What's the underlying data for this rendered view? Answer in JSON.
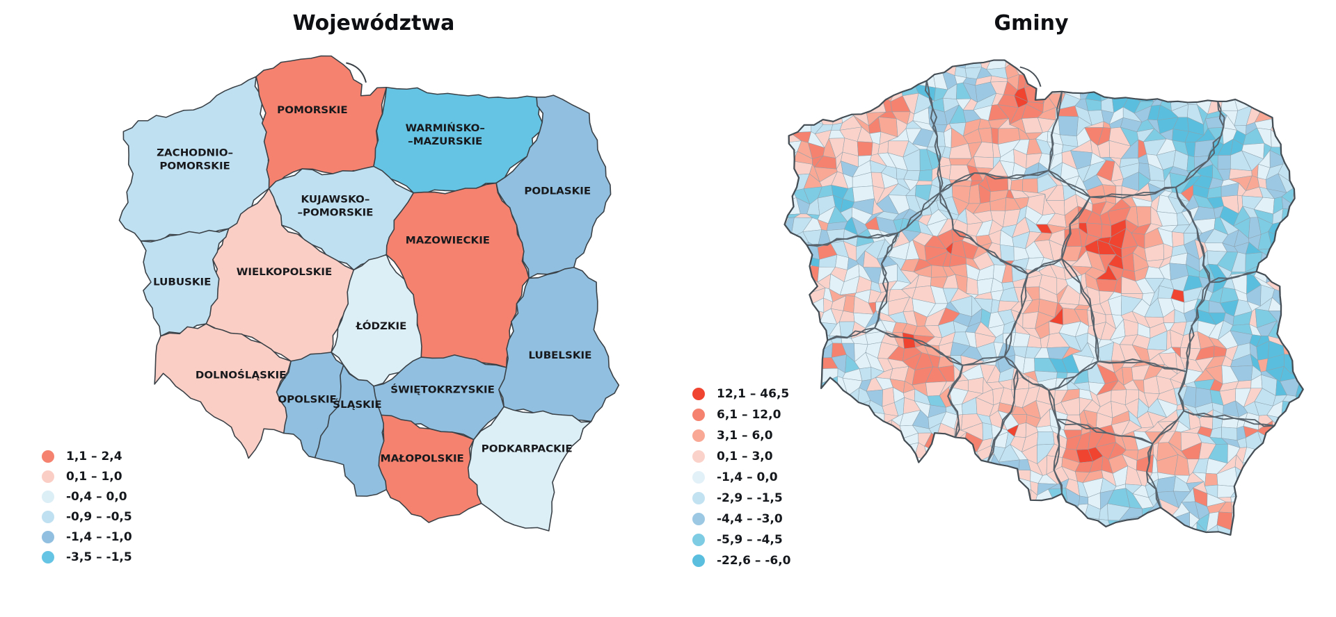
{
  "left_panel": {
    "title": "Województwa",
    "legend": [
      {
        "label": "1,1 – 2,4",
        "color": "#F5826F"
      },
      {
        "label": "0,1 – 1,0",
        "color": "#FBCEC5"
      },
      {
        "label": "-0,4 – 0,0",
        "color": "#DCEEF6"
      },
      {
        "label": "-0,9 – -0,5",
        "color": "#BFE0F1"
      },
      {
        "label": "-1,4 – -1,0",
        "color": "#90BFDF"
      },
      {
        "label": "-3,5 – -1,5",
        "color": "#65C4E3"
      }
    ],
    "regions": [
      {
        "id": "zachodniopomorskie",
        "label": [
          "ZACHODNIO–",
          "POMORSKIE"
        ],
        "class": 3
      },
      {
        "id": "pomorskie",
        "label": [
          "POMORSKIE"
        ],
        "class": 0
      },
      {
        "id": "warminsko",
        "label": [
          "WARMIŃSKO–",
          "–MAZURSKIE"
        ],
        "class": 5
      },
      {
        "id": "podlaskie",
        "label": [
          "PODLASKIE"
        ],
        "class": 4
      },
      {
        "id": "kujawsko",
        "label": [
          "KUJAWSKO–",
          "–POMORSKIE"
        ],
        "class": 3
      },
      {
        "id": "mazowieckie",
        "label": [
          "MAZOWIECKIE"
        ],
        "class": 0
      },
      {
        "id": "wielkopolskie",
        "label": [
          "WIELKOPOLSKIE"
        ],
        "class": 1
      },
      {
        "id": "lubuskie",
        "label": [
          "LUBUSKIE"
        ],
        "class": 3
      },
      {
        "id": "lodzkie",
        "label": [
          "ŁÓDZKIE"
        ],
        "class": 2
      },
      {
        "id": "lubelskie",
        "label": [
          "LUBELSKIE"
        ],
        "class": 4
      },
      {
        "id": "dolnoslaskie",
        "label": [
          "DOLNOŚLĄSKIE"
        ],
        "class": 1
      },
      {
        "id": "opolskie",
        "label": [
          "OPOLSKIE"
        ],
        "class": 4
      },
      {
        "id": "slaskie",
        "label": [
          "ŚLĄSKIE"
        ],
        "class": 4
      },
      {
        "id": "swietokrzyskie",
        "label": [
          "ŚWIĘTOKRZYSKIE"
        ],
        "class": 4
      },
      {
        "id": "malopolskie",
        "label": [
          "MAŁOPOLSKIE"
        ],
        "class": 0
      },
      {
        "id": "podkarpackie",
        "label": [
          "PODKARPACKIE"
        ],
        "class": 2
      }
    ]
  },
  "right_panel": {
    "title": "Gminy",
    "legend": [
      {
        "label": "12,1 – 46,5",
        "color": "#F04430"
      },
      {
        "label": "6,1 – 12,0",
        "color": "#F5826F"
      },
      {
        "label": "3,1 – 6,0",
        "color": "#F8A895"
      },
      {
        "label": "0,1 – 3,0",
        "color": "#FBD2C9"
      },
      {
        "label": "-1,4 – 0,0",
        "color": "#E2F1F8"
      },
      {
        "label": "-2,9 – -1,5",
        "color": "#C2E2F2"
      },
      {
        "label": "-4,4 – -3,0",
        "color": "#9CC8E4"
      },
      {
        "label": "-5,9 – -4,5",
        "color": "#7ECBE4"
      },
      {
        "label": "-22,6 – -6,0",
        "color": "#5ABFDE"
      }
    ],
    "class_thresholds": [
      12.1,
      6.1,
      3.1,
      0.1,
      -1.4,
      -2.9,
      -4.4,
      -5.9
    ]
  }
}
